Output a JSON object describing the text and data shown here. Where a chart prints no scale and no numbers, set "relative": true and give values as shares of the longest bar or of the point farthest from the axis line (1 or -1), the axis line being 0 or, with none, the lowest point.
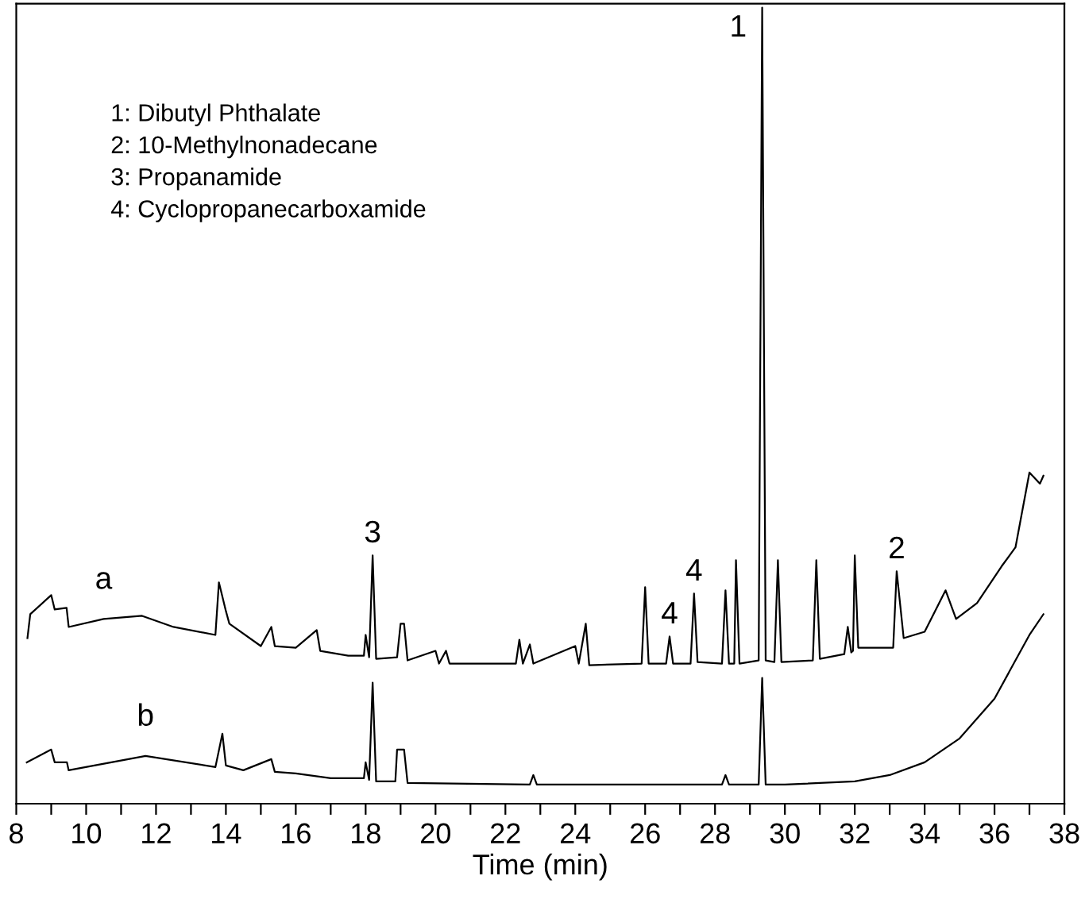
{
  "chart_data": {
    "type": "line",
    "relative": true,
    "xlabel": "Time (min)",
    "xlim": [
      8,
      38
    ],
    "xticks": [
      8,
      {
        "value": 9,
        "label": null
      },
      10,
      {
        "value": 11,
        "label": null
      },
      12,
      {
        "value": 13,
        "label": null
      },
      14,
      {
        "value": 15,
        "label": null
      },
      16,
      {
        "value": 17,
        "label": null
      },
      18,
      {
        "value": 19,
        "label": null
      },
      20,
      {
        "value": 21,
        "label": null
      },
      22,
      {
        "value": 23,
        "label": null
      },
      24,
      {
        "value": 25,
        "label": null
      },
      26,
      {
        "value": 27,
        "label": null
      },
      28,
      {
        "value": 29,
        "label": null
      },
      30,
      {
        "value": 31,
        "label": null
      },
      32,
      {
        "value": 33,
        "label": null
      },
      34,
      {
        "value": 35,
        "label": null
      },
      36,
      {
        "value": 37,
        "label": null
      },
      38
    ],
    "tick_labels": "x",
    "grid": false,
    "legend": false,
    "marker": "none",
    "line_style": "solid",
    "series": [
      {
        "name": "a",
        "color": "#000000",
        "x": [
          8.32,
          8.4,
          9.0,
          9.1,
          9.44,
          9.5,
          10.5,
          11.6,
          12.5,
          13.7,
          13.8,
          14.0,
          14.1,
          15.0,
          15.3,
          15.4,
          16.0,
          16.6,
          16.7,
          17.5,
          17.95,
          18.0,
          18.1,
          18.2,
          18.3,
          18.9,
          19.0,
          19.1,
          19.2,
          20.0,
          20.1,
          20.3,
          20.4,
          22.3,
          22.4,
          22.5,
          22.7,
          22.8,
          24.0,
          24.1,
          24.3,
          24.4,
          25.9,
          26.0,
          26.1,
          26.6,
          26.7,
          26.8,
          27.3,
          27.4,
          27.5,
          28.2,
          28.3,
          28.4,
          28.55,
          28.6,
          28.7,
          29.25,
          29.35,
          29.45,
          29.7,
          29.8,
          29.9,
          30.8,
          30.9,
          31.0,
          31.7,
          31.8,
          31.9,
          31.95,
          32.0,
          32.1,
          33.1,
          33.2,
          33.4,
          34.0,
          34.6,
          34.9,
          35.5,
          36.2,
          36.6,
          37.0,
          37.3,
          37.4
        ],
        "values": [
          0.208,
          0.238,
          0.262,
          0.244,
          0.246,
          0.222,
          0.232,
          0.236,
          0.222,
          0.212,
          0.278,
          0.242,
          0.226,
          0.198,
          0.222,
          0.198,
          0.196,
          0.218,
          0.192,
          0.186,
          0.186,
          0.212,
          0.184,
          0.312,
          0.182,
          0.184,
          0.226,
          0.226,
          0.18,
          0.192,
          0.176,
          0.192,
          0.176,
          0.176,
          0.206,
          0.176,
          0.2,
          0.176,
          0.198,
          0.176,
          0.226,
          0.174,
          0.176,
          0.272,
          0.176,
          0.176,
          0.21,
          0.176,
          0.176,
          0.264,
          0.178,
          0.176,
          0.268,
          0.176,
          0.176,
          0.306,
          0.176,
          0.18,
          1.0,
          0.18,
          0.178,
          0.306,
          0.178,
          0.18,
          0.306,
          0.182,
          0.188,
          0.222,
          0.19,
          0.192,
          0.312,
          0.196,
          0.196,
          0.292,
          0.208,
          0.216,
          0.268,
          0.232,
          0.252,
          0.298,
          0.322,
          0.416,
          0.402,
          0.412
        ]
      },
      {
        "name": "b",
        "color": "#000000",
        "x": [
          8.3,
          9.0,
          9.1,
          9.45,
          9.5,
          11.7,
          13.7,
          13.9,
          14.0,
          14.5,
          15.3,
          15.4,
          16.0,
          17.0,
          17.95,
          18.0,
          18.1,
          18.2,
          18.3,
          18.85,
          18.9,
          19.1,
          19.2,
          22.7,
          22.8,
          22.9,
          28.2,
          28.3,
          28.4,
          29.25,
          29.35,
          29.45,
          30.0,
          32.0,
          33.0,
          34.0,
          35.0,
          36.0,
          36.5,
          37.0,
          37.4
        ],
        "values": [
          0.052,
          0.068,
          0.052,
          0.052,
          0.042,
          0.06,
          0.046,
          0.088,
          0.048,
          0.042,
          0.056,
          0.04,
          0.038,
          0.032,
          0.032,
          0.052,
          0.03,
          0.152,
          0.028,
          0.028,
          0.068,
          0.068,
          0.026,
          0.024,
          0.036,
          0.024,
          0.024,
          0.036,
          0.024,
          0.024,
          0.158,
          0.024,
          0.024,
          0.028,
          0.036,
          0.052,
          0.082,
          0.132,
          0.172,
          0.212,
          0.238
        ]
      }
    ],
    "annotations": [
      "1: Dibutyl Phthalate",
      "2: 10-Methylnonadecane",
      "3: Propanamide",
      "4: Cyclopropanecarboxamide",
      {
        "text": "1",
        "x": 29.35,
        "y": 1.0
      },
      {
        "text": "2",
        "x": 33.2,
        "y": 0.292
      },
      {
        "text": "3",
        "x": 18.2,
        "y": 0.312
      },
      {
        "text": "4",
        "x": 27.4,
        "y": 0.264
      },
      {
        "text": "4",
        "x": 26.7,
        "y": 0.21
      }
    ]
  }
}
